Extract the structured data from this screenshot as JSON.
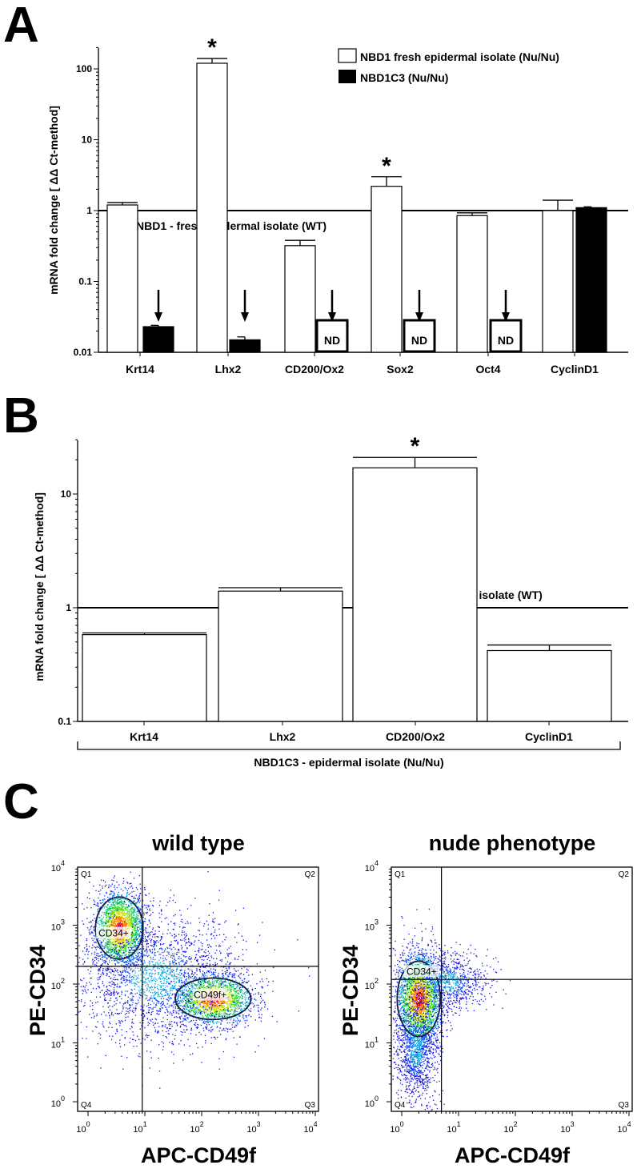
{
  "chart_data": [
    {
      "panel": "A",
      "type": "bar",
      "yscale": "log",
      "ylim": [
        0.01,
        200
      ],
      "ylabel": "mRNA fold change [ ΔΔ Ct-method]",
      "yticks": [
        "100",
        "10",
        "1",
        "0.1",
        "0.01"
      ],
      "ytick_values": [
        100,
        10,
        1,
        0.1,
        0.01
      ],
      "categories": [
        "Krt14",
        "Lhx2",
        "CD200/Ox2",
        "Sox2",
        "Oct4",
        "CyclinD1"
      ],
      "reference_line": {
        "value": 1,
        "label": "NBD1 - fresh epidermal isolate (WT)"
      },
      "legend_position": "top-right",
      "series": [
        {
          "name": "NBD1 fresh epidermal isolate (Nu/Nu)",
          "color": "#ffffff",
          "values": [
            1.2,
            120,
            0.32,
            2.2,
            0.85,
            1.0
          ],
          "error_upper": [
            1.3,
            140,
            0.38,
            3.0,
            0.93,
            1.4
          ],
          "significant": [
            false,
            true,
            false,
            true,
            false,
            false
          ]
        },
        {
          "name": "NBD1C3 (Nu/Nu)",
          "color": "#000000",
          "values": [
            0.023,
            0.015,
            null,
            null,
            null,
            1.1
          ],
          "error_upper": [
            0.024,
            0.0165,
            null,
            null,
            null,
            1.13
          ],
          "not_detected": [
            false,
            false,
            true,
            true,
            true,
            false
          ],
          "arrow": [
            true,
            true,
            true,
            true,
            true,
            false
          ]
        }
      ],
      "nd_label": "ND",
      "significance_marker": "*"
    },
    {
      "panel": "B",
      "type": "bar",
      "yscale": "log",
      "ylim": [
        0.1,
        30
      ],
      "ylabel": "mRNA fold change [ ΔΔ Ct-method]",
      "yticks": [
        "10",
        "1",
        "0.1"
      ],
      "ytick_values": [
        10,
        1,
        0.1
      ],
      "categories": [
        "Krt14",
        "Lhx2",
        "CD200/Ox2",
        "CyclinD1"
      ],
      "reference_line": {
        "value": 1,
        "label": "NBD1C3 - epidermal isolate (WT)"
      },
      "group_label": "NBD1C3 - epidermal isolate (Nu/Nu)",
      "series": [
        {
          "name": "NBD1C3 - epidermal isolate (Nu/Nu)",
          "color": "#ffffff",
          "values": [
            0.58,
            1.4,
            17,
            0.42
          ],
          "error_upper": [
            0.6,
            1.5,
            21,
            0.47
          ],
          "significant": [
            false,
            false,
            true,
            false
          ]
        }
      ],
      "significance_marker": "*"
    },
    {
      "panel": "C",
      "type": "scatter",
      "title": "wild type",
      "xlabel": "APC-CD49f",
      "ylabel": "PE-CD34",
      "xscale": "log",
      "yscale": "log",
      "xlim": [
        1,
        10000
      ],
      "ylim": [
        1,
        15000
      ],
      "ticks": [
        {
          "b": "10",
          "e": "0"
        },
        {
          "b": "10",
          "e": "1"
        },
        {
          "b": "10",
          "e": "2"
        },
        {
          "b": "10",
          "e": "3"
        },
        {
          "b": "10",
          "e": "4"
        }
      ],
      "gates": {
        "x": 9,
        "y": 200
      },
      "quadrants": [
        "Q1",
        "Q2",
        "Q3",
        "Q4"
      ],
      "populations": [
        {
          "label": "CD34+",
          "center_log": [
            0.55,
            2.95
          ],
          "sd_log": [
            0.22,
            0.33
          ],
          "events": 2200,
          "label_log": [
            0.45,
            2.85
          ]
        },
        {
          "label": "CD49f+",
          "center_log": [
            2.2,
            1.75
          ],
          "sd_log": [
            0.35,
            0.22
          ],
          "events": 1800,
          "label_log": [
            2.15,
            1.8
          ]
        },
        {
          "label": "",
          "center_log": [
            1.2,
            2.1
          ],
          "sd_log": [
            0.75,
            0.55
          ],
          "events": 2200
        }
      ]
    },
    {
      "panel": "C",
      "type": "scatter",
      "title": "nude phenotype",
      "xlabel": "APC-CD49f",
      "ylabel": "PE-CD34",
      "xscale": "log",
      "yscale": "log",
      "xlim": [
        1,
        10000
      ],
      "ylim": [
        1,
        15000
      ],
      "ticks": [
        {
          "b": "10",
          "e": "0"
        },
        {
          "b": "10",
          "e": "1"
        },
        {
          "b": "10",
          "e": "2"
        },
        {
          "b": "10",
          "e": "3"
        },
        {
          "b": "10",
          "e": "4"
        }
      ],
      "gates": {
        "x": 5,
        "y": 120
      },
      "quadrants": [
        "Q1",
        "Q2",
        "Q3",
        "Q4"
      ],
      "populations": [
        {
          "label": "CD34+",
          "center_log": [
            0.3,
            1.75
          ],
          "sd_log": [
            0.2,
            0.4
          ],
          "events": 2600,
          "label_log": [
            0.35,
            2.2
          ]
        },
        {
          "label": "",
          "center_log": [
            0.25,
            0.9
          ],
          "sd_log": [
            0.18,
            0.45
          ],
          "events": 1200
        },
        {
          "label": "",
          "center_log": [
            0.8,
            2.05
          ],
          "sd_log": [
            0.35,
            0.25
          ],
          "events": 900
        }
      ]
    }
  ],
  "panels": {
    "a": "A",
    "b": "B",
    "c": "C"
  }
}
